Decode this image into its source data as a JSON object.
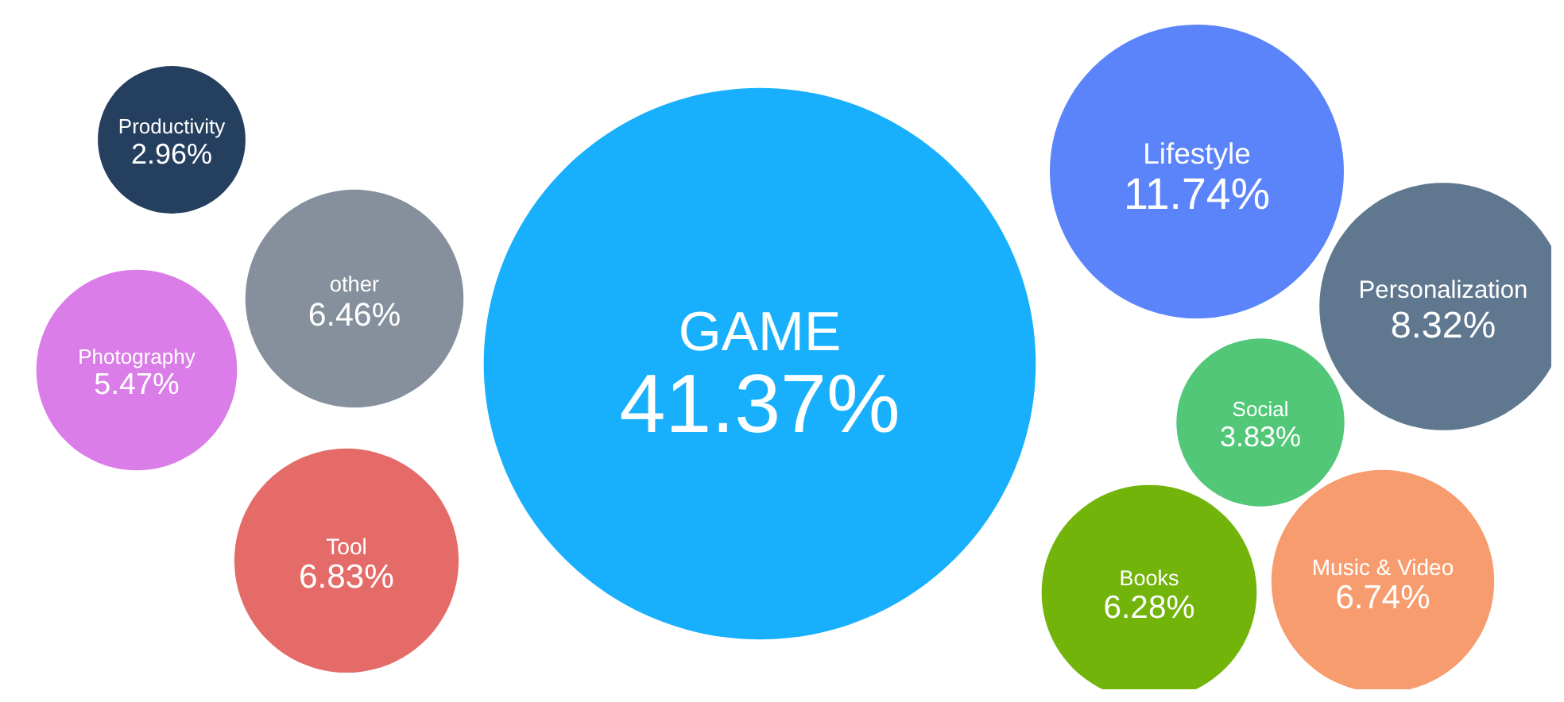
{
  "chart_data": {
    "type": "other",
    "categories": [
      "GAME",
      "Lifestyle",
      "Personalization",
      "Social",
      "Books",
      "Music & Video",
      "Tool",
      "other",
      "Photography",
      "Productivity"
    ],
    "values": [
      41.37,
      11.74,
      8.32,
      3.83,
      6.28,
      6.74,
      6.83,
      6.46,
      5.47,
      2.96
    ],
    "value_labels": [
      "41.37%",
      "11.74%",
      "8.32%",
      "3.83%",
      "6.28%",
      "6.74%",
      "6.83%",
      "6.46%",
      "5.47%",
      "2.96%"
    ],
    "colors": [
      "#18b0fc",
      "#5b84fb",
      "#60788f",
      "#52c777",
      "#72b40a",
      "#f79c6e",
      "#e56b69",
      "#86909c",
      "#db7de8",
      "#253f5f"
    ]
  }
}
